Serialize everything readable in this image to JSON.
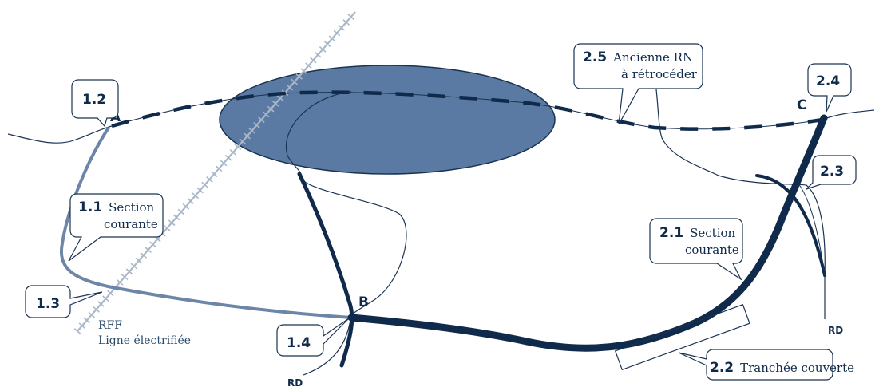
{
  "colors": {
    "ellipse_fill": "#5a7aa3",
    "dark_route": "#0f2a4a",
    "light_route": "#6c86a8",
    "rail": "#a9b7c9",
    "thin_line": "#1a3352"
  },
  "points": {
    "a": "A",
    "b": "B",
    "c": "C"
  },
  "callouts": {
    "c12": {
      "num": "1.2"
    },
    "c11": {
      "num": "1.1",
      "line1": "Section",
      "line2": "courante"
    },
    "c13": {
      "num": "1.3"
    },
    "c14": {
      "num": "1.4"
    },
    "c25": {
      "num": "2.5",
      "line1": "Ancienne RN",
      "line2": "à rétrocéder"
    },
    "c24": {
      "num": "2.4"
    },
    "c23": {
      "num": "2.3"
    },
    "c21": {
      "num": "2.1",
      "line1": "Section",
      "line2": "courante"
    },
    "c22": {
      "num": "2.2",
      "line1": "Tranchée couverte"
    }
  },
  "labels": {
    "rff_line1": "RFF",
    "rff_line2": "Ligne électrifiée",
    "rd_left": "RD",
    "rd_right": "RD"
  }
}
